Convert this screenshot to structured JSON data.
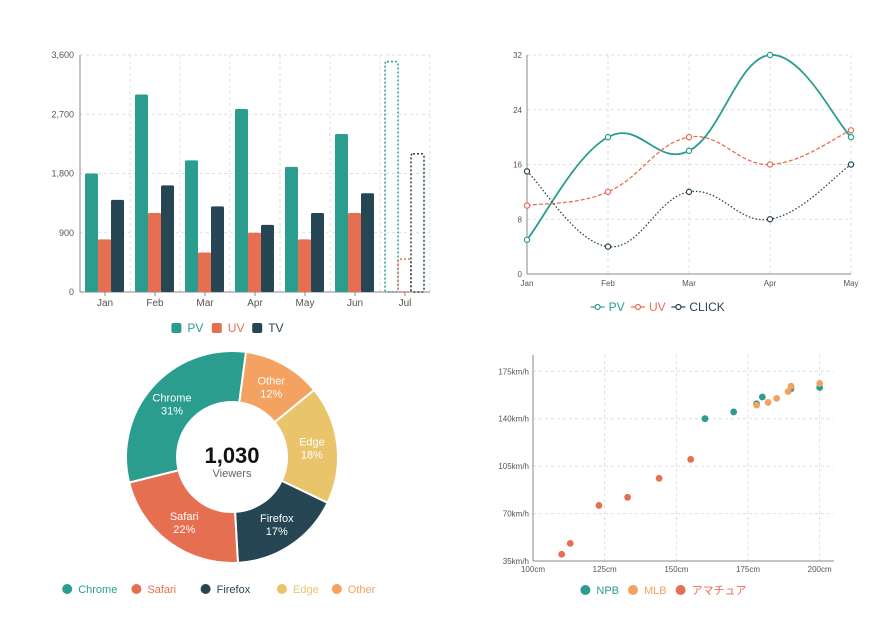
{
  "colors": {
    "teal": "#2a9d8f",
    "orange": "#e76f51",
    "navy": "#264653",
    "yellow": "#e9c46a",
    "light_orange": "#f4a261",
    "gray": "#666666"
  },
  "chart_data": [
    {
      "type": "bar",
      "categories": [
        "Jan",
        "Feb",
        "Mar",
        "Apr",
        "May",
        "Jun",
        "Jul"
      ],
      "series": [
        {
          "name": "PV",
          "values": [
            1800,
            3000,
            2000,
            2780,
            1900,
            2400,
            3500
          ],
          "color": "#2a9d8f"
        },
        {
          "name": "UV",
          "values": [
            800,
            1200,
            600,
            900,
            800,
            1200,
            500
          ],
          "color": "#e76f51"
        },
        {
          "name": "TV",
          "values": [
            1400,
            1620,
            1300,
            1020,
            1200,
            1500,
            2100
          ],
          "color": "#264653"
        }
      ],
      "projected_category": "Jul",
      "ylim": [
        0,
        3600
      ],
      "yticks": [
        "0",
        "900",
        "1,800",
        "2,700",
        "3,600"
      ],
      "legend": [
        "PV",
        "UV",
        "TV"
      ]
    },
    {
      "type": "line",
      "categories": [
        "Jan",
        "Feb",
        "Mar",
        "Apr",
        "May"
      ],
      "series": [
        {
          "name": "PV",
          "values": [
            5,
            20,
            18,
            32,
            20
          ],
          "color": "#2a9d8f",
          "style": "solid"
        },
        {
          "name": "UV",
          "values": [
            10,
            12,
            20,
            16,
            21
          ],
          "color": "#e76f51",
          "style": "dashed"
        },
        {
          "name": "CLICK",
          "values": [
            15,
            4,
            12,
            8,
            16
          ],
          "color": "#264653",
          "style": "dotted"
        }
      ],
      "ylim": [
        0,
        32
      ],
      "yticks": [
        "0",
        "8",
        "16",
        "24",
        "32"
      ],
      "legend": [
        "PV",
        "UV",
        "CLICK"
      ]
    },
    {
      "type": "pie",
      "center_value": "1,030",
      "center_label": "Viewers",
      "slices": [
        {
          "name": "Chrome",
          "percent": 31,
          "label": "31%",
          "color": "#2a9d8f"
        },
        {
          "name": "Other",
          "percent": 12,
          "label": "12%",
          "color": "#f4a261"
        },
        {
          "name": "Edge",
          "percent": 18,
          "label": "18%",
          "color": "#e9c46a"
        },
        {
          "name": "Firefox",
          "percent": 17,
          "label": "17%",
          "color": "#264653"
        },
        {
          "name": "Safari",
          "percent": 22,
          "label": "22%",
          "color": "#e76f51"
        }
      ],
      "legend": [
        "Chrome",
        "Safari",
        "Firefox",
        "Edge",
        "Other"
      ]
    },
    {
      "type": "scatter",
      "xlim": [
        100,
        205
      ],
      "ylim": [
        35,
        187
      ],
      "xticks": [
        {
          "v": 100,
          "label": "100cm"
        },
        {
          "v": 125,
          "label": "125cm"
        },
        {
          "v": 150,
          "label": "150cm"
        },
        {
          "v": 175,
          "label": "175cm"
        },
        {
          "v": 200,
          "label": "200cm"
        }
      ],
      "yticks": [
        {
          "v": 35,
          "label": "35km/h"
        },
        {
          "v": 70,
          "label": "70km/h"
        },
        {
          "v": 105,
          "label": "105km/h"
        },
        {
          "v": 140,
          "label": "140km/h"
        },
        {
          "v": 175,
          "label": "175km/h"
        }
      ],
      "series": [
        {
          "name": "NPB",
          "color": "#2a9d8f",
          "points": [
            [
              160,
              140
            ],
            [
              170,
              145
            ],
            [
              178,
              151
            ],
            [
              180,
              156
            ],
            [
              190,
              162
            ],
            [
              200,
              163
            ]
          ]
        },
        {
          "name": "MLB",
          "color": "#f4a261",
          "points": [
            [
              178,
              150
            ],
            [
              182,
              152
            ],
            [
              185,
              155
            ],
            [
              189,
              160
            ],
            [
              190,
              164
            ],
            [
              200,
              166
            ]
          ]
        },
        {
          "name": "アマチュア",
          "color": "#e76f51",
          "points": [
            [
              110,
              40
            ],
            [
              113,
              48
            ],
            [
              123,
              76
            ],
            [
              133,
              82
            ],
            [
              144,
              96
            ],
            [
              155,
              110
            ]
          ]
        }
      ],
      "legend": [
        "NPB",
        "MLB",
        "アマチュア"
      ]
    }
  ]
}
